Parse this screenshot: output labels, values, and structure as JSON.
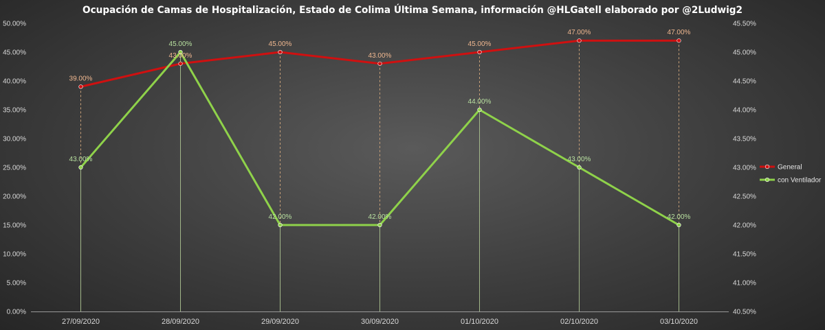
{
  "chart_data": {
    "type": "line",
    "title": "Ocupación de Camas de Hospitalización, Estado de Colima Última Semana, información @HLGatell elaborado por @2Ludwig2",
    "categories": [
      "27/09/2020",
      "28/09/2020",
      "29/09/2020",
      "30/09/2020",
      "01/10/2020",
      "02/10/2020",
      "03/10/2020"
    ],
    "y_left": {
      "range": [
        0,
        50
      ],
      "ticks": [
        "0.00%",
        "5.00%",
        "10.00%",
        "15.00%",
        "20.00%",
        "25.00%",
        "30.00%",
        "35.00%",
        "40.00%",
        "45.00%",
        "50.00%"
      ]
    },
    "y_right": {
      "range": [
        40.5,
        45.5
      ],
      "ticks": [
        "40.50%",
        "41.00%",
        "41.50%",
        "42.00%",
        "42.50%",
        "43.00%",
        "43.50%",
        "44.00%",
        "44.50%",
        "45.00%",
        "45.50%"
      ]
    },
    "series": [
      {
        "name": "General",
        "axis": "left",
        "color": "#d01010",
        "label_color": "#f0b890",
        "values": [
          39,
          43,
          45,
          43,
          45,
          47,
          47
        ],
        "labels": [
          "39.00%",
          "43.00%",
          "45.00%",
          "43.00%",
          "45.00%",
          "47.00%",
          "47.00%"
        ]
      },
      {
        "name": "con Ventilador",
        "axis": "right",
        "color": "#8fd24a",
        "label_color": "#b8e0a0",
        "values": [
          43,
          45,
          42,
          42,
          44,
          43,
          42
        ],
        "labels": [
          "43.00%",
          "45.00%",
          "42.00%",
          "42.00%",
          "44.00%",
          "43.00%",
          "42.00%"
        ]
      }
    ],
    "legend_position": "right",
    "grid": false,
    "drop_lines": true
  }
}
